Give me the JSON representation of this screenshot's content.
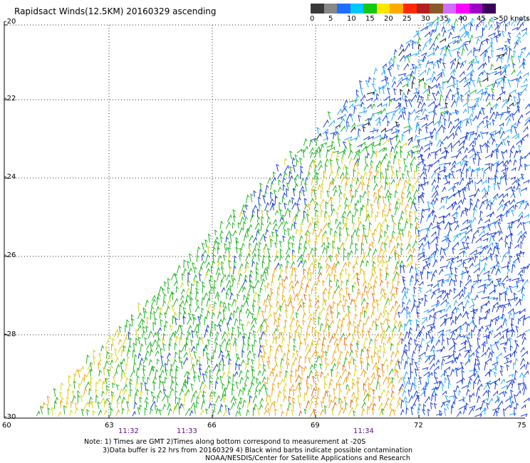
{
  "title": "Rapidsact Winds(12.5KM) 20160329 ascending",
  "legend": {
    "unit": ">50 knots",
    "swatches": [
      {
        "color": "#3a3a3a"
      },
      {
        "color": "#888888"
      },
      {
        "color": "#1f6fff"
      },
      {
        "color": "#00c8ff"
      },
      {
        "color": "#14c814"
      },
      {
        "color": "#ffe600"
      },
      {
        "color": "#ffaa00"
      },
      {
        "color": "#ff2a00"
      },
      {
        "color": "#b41e1e"
      },
      {
        "color": "#8b5a2b"
      },
      {
        "color": "#d26eff"
      },
      {
        "color": "#ff00ff"
      },
      {
        "color": "#a000c8"
      },
      {
        "color": "#3c005a"
      }
    ],
    "labels": [
      "0",
      "5",
      "10",
      "15",
      "20",
      "25",
      "30",
      "35",
      "40",
      "45"
    ]
  },
  "axes": {
    "y_ticks": [
      "-20",
      "-22",
      "-24",
      "-26",
      "-28",
      "-30"
    ],
    "x_ticks": [
      "60",
      "63",
      "66",
      "69",
      "72",
      "75"
    ]
  },
  "times": [
    "11:32",
    "11:33",
    "11:34"
  ],
  "notes": [
    "Note: 1) Times are GMT 2)Times along bottom correspond to measurement at -20S",
    "3)Data buffer is 22 hrs from 20160329 4) Black wind barbs indicate possible contamination",
    "NOAA/NESDIS/Center for Satellite Applications and Research"
  ],
  "colors": {
    "blue": "#1c3dd6",
    "cyan": "#2aa8ff",
    "green": "#22b522",
    "yellow": "#d8d21e",
    "orange": "#f0a21a",
    "red": "#e0641e",
    "black": "#111111"
  }
}
